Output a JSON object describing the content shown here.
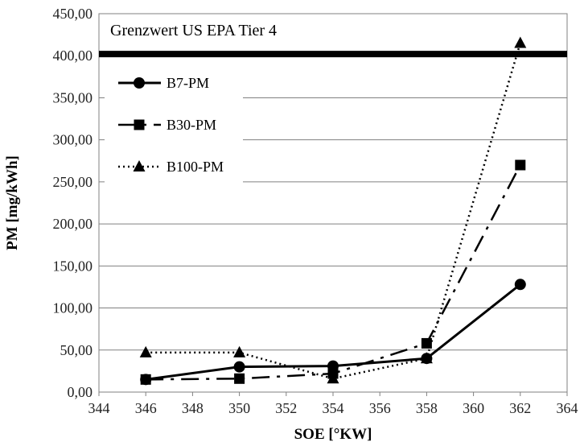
{
  "chart_data": {
    "type": "line",
    "xlabel": "SOE [°KW]",
    "ylabel": "PM [mg/kWh]",
    "xlim": [
      344,
      364
    ],
    "ylim": [
      0,
      450
    ],
    "xticks": [
      344,
      346,
      348,
      350,
      352,
      354,
      356,
      358,
      360,
      362,
      364
    ],
    "yticks": [
      0,
      50,
      100,
      150,
      200,
      250,
      300,
      350,
      400,
      450
    ],
    "x_tick_labels": [
      "344",
      "346",
      "348",
      "350",
      "352",
      "354",
      "356",
      "358",
      "360",
      "362",
      "364"
    ],
    "y_tick_labels": [
      "0,00",
      "50,00",
      "100,00",
      "150,00",
      "200,00",
      "250,00",
      "300,00",
      "350,00",
      "400,00",
      "450,00"
    ],
    "grid": "horizontal",
    "legend_position": "top-left",
    "x": [
      346,
      350,
      354,
      358,
      362
    ],
    "series": [
      {
        "name": "B7-PM",
        "values": [
          15,
          30,
          31,
          40,
          128
        ],
        "marker": "circle",
        "line_style": "solid",
        "color": "#000000"
      },
      {
        "name": "B30-PM",
        "values": [
          15,
          16,
          22,
          58,
          270
        ],
        "marker": "square",
        "line_style": "dashdot",
        "color": "#000000"
      },
      {
        "name": "B100-PM",
        "values": [
          47,
          47,
          16,
          40,
          415
        ],
        "marker": "triangle",
        "line_style": "dotted",
        "color": "#000000"
      }
    ],
    "limit_line": {
      "label": "Grenzwert US EPA Tier 4",
      "value": 402
    }
  }
}
